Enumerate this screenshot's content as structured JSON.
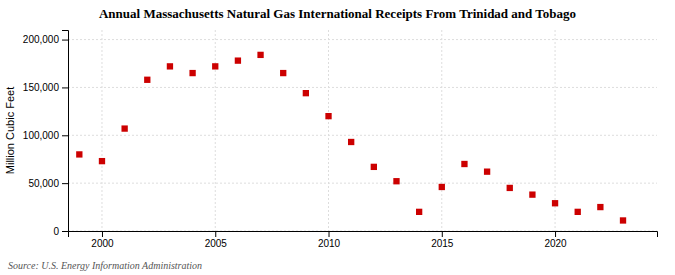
{
  "chart_data": {
    "type": "scatter",
    "title": "Annual Massachusetts Natural Gas International Receipts From Trinidad and Tobago",
    "ylabel": "Million Cubic Feet",
    "annotation": "Source: U.S. Energy Information Administration",
    "color": "#cc0000",
    "marker": "square",
    "x": [
      1999,
      2000,
      2001,
      2002,
      2003,
      2004,
      2005,
      2006,
      2007,
      2008,
      2009,
      2010,
      2011,
      2012,
      2013,
      2014,
      2015,
      2016,
      2017,
      2018,
      2019,
      2020,
      2021,
      2022,
      2023
    ],
    "values": [
      80000,
      73000,
      107000,
      158000,
      172000,
      165000,
      172000,
      178000,
      184000,
      165000,
      144000,
      120000,
      93000,
      67000,
      52000,
      20000,
      46000,
      70000,
      62000,
      45000,
      38000,
      29000,
      20000,
      25000,
      11000
    ],
    "xlim": [
      1998.5,
      2024.5
    ],
    "ylim": [
      0,
      210000
    ],
    "xticks": [
      2000,
      2005,
      2010,
      2015,
      2020
    ],
    "yticks": [
      0,
      {
        "value": 50000,
        "label": "50,000"
      },
      {
        "value": 100000,
        "label": "100,000"
      },
      {
        "value": 150000,
        "label": "150,000"
      },
      {
        "value": 200000,
        "label": "200,000"
      }
    ],
    "grid": true
  }
}
